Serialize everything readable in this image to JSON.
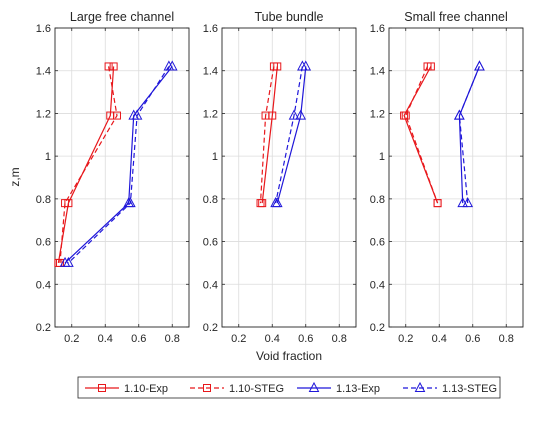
{
  "chart_data": {
    "type": "line",
    "ylabel": "z,m",
    "xlabel": "Void fraction",
    "xlim": [
      0.1,
      0.9
    ],
    "ylim": [
      0.2,
      1.6
    ],
    "xticks": [
      "0.2",
      "0.4",
      "0.6",
      "0.8"
    ],
    "yticks": [
      "0.2",
      "0.4",
      "0.6",
      "0.8",
      "1",
      "1.2",
      "1.4",
      "1.6"
    ],
    "grid": true,
    "legend_position": "bottom",
    "series_styles": [
      {
        "color": "#e8171b",
        "dash": "solid",
        "marker": "square"
      },
      {
        "color": "#e8171b",
        "dash": "dashed",
        "marker": "square"
      },
      {
        "color": "#1f16d9",
        "dash": "solid",
        "marker": "triangle"
      },
      {
        "color": "#1f16d9",
        "dash": "dashed",
        "marker": "triangle"
      }
    ],
    "panels": [
      {
        "title": "Large free channel",
        "series": [
          {
            "name": "1.10-Exp",
            "x": [
              0.45,
              0.43,
              0.18,
              0.12
            ],
            "y": [
              1.42,
              1.19,
              0.78,
              0.5
            ]
          },
          {
            "name": "1.10-STEG",
            "x": [
              0.42,
              0.47,
              0.16,
              0.13
            ],
            "y": [
              1.42,
              1.19,
              0.78,
              0.5
            ]
          },
          {
            "name": "1.13-Exp",
            "x": [
              0.8,
              0.57,
              0.54,
              0.16
            ],
            "y": [
              1.42,
              1.19,
              0.78,
              0.5
            ]
          },
          {
            "name": "1.13-STEG",
            "x": [
              0.78,
              0.59,
              0.55,
              0.18
            ],
            "y": [
              1.42,
              1.19,
              0.78,
              0.5
            ]
          }
        ]
      },
      {
        "title": "Tube bundle",
        "series": [
          {
            "name": "1.10-Exp",
            "x": [
              0.43,
              0.4,
              0.34
            ],
            "y": [
              1.42,
              1.19,
              0.78
            ]
          },
          {
            "name": "1.10-STEG",
            "x": [
              0.41,
              0.36,
              0.33
            ],
            "y": [
              1.42,
              1.19,
              0.78
            ]
          },
          {
            "name": "1.13-Exp",
            "x": [
              0.6,
              0.57,
              0.43
            ],
            "y": [
              1.42,
              1.19,
              0.78
            ]
          },
          {
            "name": "1.13-STEG",
            "x": [
              0.58,
              0.53,
              0.42
            ],
            "y": [
              1.42,
              1.19,
              0.78
            ]
          }
        ]
      },
      {
        "title": "Small free channel",
        "series": [
          {
            "name": "1.10-Exp",
            "x": [
              0.35,
              0.19,
              0.39
            ],
            "y": [
              1.42,
              1.19,
              0.78
            ]
          },
          {
            "name": "1.10-STEG",
            "x": [
              0.33,
              0.2,
              0.39
            ],
            "y": [
              1.42,
              1.19,
              0.78
            ]
          },
          {
            "name": "1.13-Exp",
            "x": [
              0.64,
              0.52,
              0.54
            ],
            "y": [
              1.42,
              1.19,
              0.78
            ]
          },
          {
            "name": "1.13-STEG",
            "x": [
              0.64,
              0.52,
              0.57
            ],
            "y": [
              1.42,
              1.19,
              0.78
            ]
          }
        ]
      }
    ]
  }
}
